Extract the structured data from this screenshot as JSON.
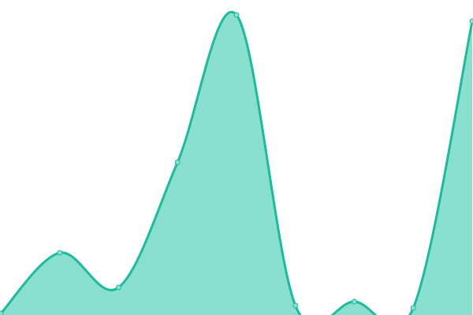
{
  "chart_data": {
    "type": "area",
    "smooth": true,
    "x": [
      0,
      1,
      2,
      3,
      4,
      5,
      6,
      7,
      8
    ],
    "series": [
      {
        "values": [
          2,
          79,
          35,
          194,
          381,
          12,
          17,
          9,
          373
        ]
      }
    ],
    "ylim": [
      0,
      400
    ],
    "grid": false,
    "axes_visible": false,
    "colors": {
      "line": "#1abc9c",
      "fill": "#8ae0cf",
      "point": "#8ae0cf"
    }
  }
}
